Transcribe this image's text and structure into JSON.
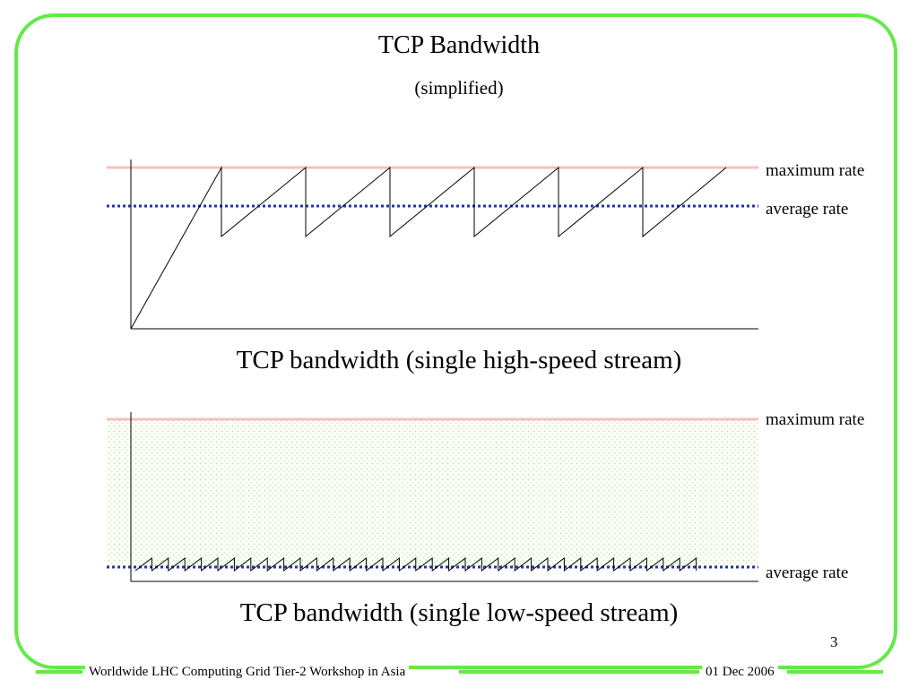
{
  "slide": {
    "title": "TCP Bandwidth",
    "subtitle": "(simplified)",
    "page_number": "3"
  },
  "diagram_top": {
    "caption": "TCP bandwidth (single high-speed stream)",
    "max_label": "maximum rate",
    "avg_label": "average rate"
  },
  "diagram_bottom": {
    "caption": "TCP bandwidth (single low-speed stream)",
    "max_label": "maximum rate",
    "avg_label": "average rate"
  },
  "footer": {
    "left": "Worldwide LHC Computing Grid Tier-2 Workshop in Asia",
    "right": "01 Dec 2006"
  },
  "colors": {
    "frame": "#66e84a",
    "max_line": "#f7c0c0",
    "avg_line": "#2233aa",
    "fill": "#d8f5c0"
  }
}
